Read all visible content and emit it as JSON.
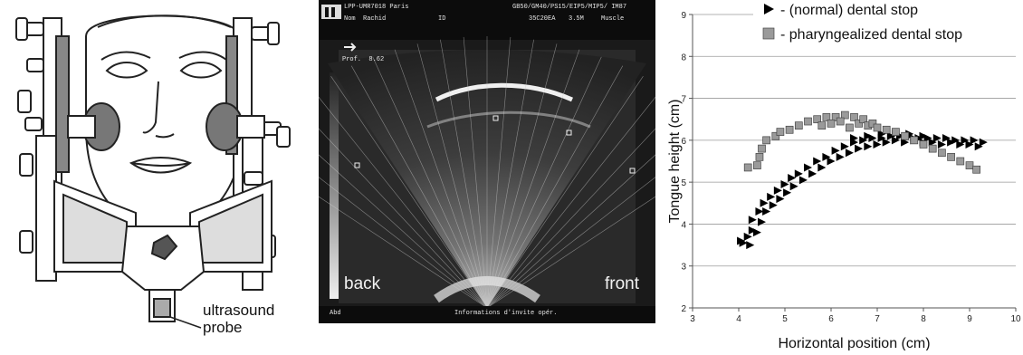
{
  "drawing": {
    "probe_label_line1": "ultrasound",
    "probe_label_line2": "probe"
  },
  "ultrasound": {
    "header_left": "LPP-UMR7018 Paris",
    "header_right": "GB50/GM40/PS15/EIP5/MIP5/ IM87",
    "name_label": "Nom  Rachid",
    "id_label": "ID",
    "probe_code": "35C20EA",
    "frequency": "3.5M",
    "preset": "Muscle",
    "depth_label": "Prof.  8.62",
    "left_label": "back",
    "right_label": "front",
    "footer_left": "Abd",
    "footer_center": "Informations d'invite opér."
  },
  "chart_data": {
    "type": "scatter",
    "xlabel": "Horizontal position (cm)",
    "ylabel": "Tongue height (cm)",
    "xlim": [
      3,
      10
    ],
    "ylim": [
      2,
      9
    ],
    "xticks": [
      3,
      4,
      5,
      6,
      7,
      8,
      9,
      10
    ],
    "yticks": [
      2,
      3,
      4,
      5,
      6,
      7,
      8,
      9
    ],
    "grid": "horizontal",
    "legend_position": "top-right",
    "series": [
      {
        "name": "- (normal) dental stop",
        "marker": "triangle-right",
        "color": "#000000",
        "points": [
          [
            4.05,
            3.6
          ],
          [
            4.1,
            3.55
          ],
          [
            4.2,
            3.7
          ],
          [
            4.25,
            3.5
          ],
          [
            4.3,
            3.85
          ],
          [
            4.3,
            4.1
          ],
          [
            4.4,
            3.8
          ],
          [
            4.45,
            4.3
          ],
          [
            4.5,
            4.05
          ],
          [
            4.55,
            4.5
          ],
          [
            4.6,
            4.3
          ],
          [
            4.7,
            4.65
          ],
          [
            4.75,
            4.45
          ],
          [
            4.85,
            4.8
          ],
          [
            4.9,
            4.6
          ],
          [
            5.0,
            4.95
          ],
          [
            5.05,
            4.75
          ],
          [
            5.15,
            5.1
          ],
          [
            5.2,
            4.9
          ],
          [
            5.3,
            5.2
          ],
          [
            5.4,
            5.05
          ],
          [
            5.5,
            5.35
          ],
          [
            5.6,
            5.2
          ],
          [
            5.7,
            5.5
          ],
          [
            5.8,
            5.35
          ],
          [
            5.9,
            5.6
          ],
          [
            6.0,
            5.5
          ],
          [
            6.1,
            5.75
          ],
          [
            6.2,
            5.6
          ],
          [
            6.3,
            5.85
          ],
          [
            6.4,
            5.7
          ],
          [
            6.5,
            5.95
          ],
          [
            6.6,
            5.8
          ],
          [
            6.7,
            6.0
          ],
          [
            6.8,
            5.85
          ],
          [
            6.9,
            6.05
          ],
          [
            7.0,
            5.9
          ],
          [
            7.1,
            6.05
          ],
          [
            7.2,
            5.95
          ],
          [
            7.3,
            6.1
          ],
          [
            7.4,
            6.0
          ],
          [
            7.5,
            6.1
          ],
          [
            7.6,
            5.95
          ],
          [
            7.7,
            6.1
          ],
          [
            7.8,
            6.0
          ],
          [
            7.9,
            6.05
          ],
          [
            8.0,
            5.95
          ],
          [
            8.1,
            6.05
          ],
          [
            8.2,
            5.95
          ],
          [
            8.3,
            6.05
          ],
          [
            8.4,
            5.9
          ],
          [
            8.5,
            6.05
          ],
          [
            8.6,
            5.95
          ],
          [
            8.7,
            6.0
          ],
          [
            8.8,
            5.9
          ],
          [
            8.9,
            6.0
          ],
          [
            9.0,
            5.9
          ],
          [
            9.1,
            6.0
          ],
          [
            9.2,
            5.85
          ],
          [
            9.3,
            5.95
          ],
          [
            6.5,
            6.05
          ],
          [
            6.8,
            6.1
          ],
          [
            7.1,
            6.15
          ],
          [
            7.4,
            6.15
          ],
          [
            7.7,
            6.15
          ],
          [
            8.0,
            6.1
          ]
        ]
      },
      {
        "name": "- pharyngealized dental stop",
        "marker": "square",
        "color": "#9a9a9a",
        "points": [
          [
            4.2,
            5.35
          ],
          [
            4.4,
            5.4
          ],
          [
            4.45,
            5.6
          ],
          [
            4.5,
            5.8
          ],
          [
            4.6,
            6.0
          ],
          [
            4.8,
            6.1
          ],
          [
            4.9,
            6.2
          ],
          [
            5.1,
            6.25
          ],
          [
            5.3,
            6.35
          ],
          [
            5.5,
            6.45
          ],
          [
            5.7,
            6.5
          ],
          [
            5.9,
            6.55
          ],
          [
            6.1,
            6.55
          ],
          [
            6.3,
            6.6
          ],
          [
            6.5,
            6.55
          ],
          [
            6.6,
            6.4
          ],
          [
            6.7,
            6.5
          ],
          [
            6.8,
            6.35
          ],
          [
            6.9,
            6.4
          ],
          [
            7.0,
            6.3
          ],
          [
            7.2,
            6.25
          ],
          [
            7.4,
            6.2
          ],
          [
            7.6,
            6.1
          ],
          [
            7.8,
            6.0
          ],
          [
            8.0,
            5.9
          ],
          [
            8.2,
            5.8
          ],
          [
            8.4,
            5.7
          ],
          [
            8.6,
            5.6
          ],
          [
            8.8,
            5.5
          ],
          [
            9.0,
            5.4
          ],
          [
            9.15,
            5.3
          ],
          [
            6.2,
            6.45
          ],
          [
            6.4,
            6.3
          ],
          [
            6.0,
            6.4
          ],
          [
            5.8,
            6.35
          ]
        ]
      }
    ]
  }
}
